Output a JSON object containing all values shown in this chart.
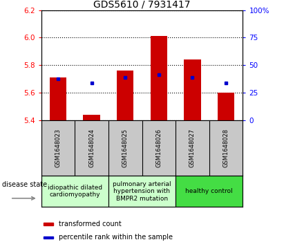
{
  "title": "GDS5610 / 7931417",
  "samples": [
    "GSM1648023",
    "GSM1648024",
    "GSM1648025",
    "GSM1648026",
    "GSM1648027",
    "GSM1648028"
  ],
  "bar_bottoms": [
    5.4,
    5.4,
    5.4,
    5.4,
    5.4,
    5.4
  ],
  "bar_tops": [
    5.71,
    5.44,
    5.76,
    6.01,
    5.84,
    5.6
  ],
  "dot_values": [
    5.7,
    5.67,
    5.71,
    5.73,
    5.71,
    5.67
  ],
  "ylim": [
    5.4,
    6.2
  ],
  "yticks_left": [
    5.4,
    5.6,
    5.8,
    6.0,
    6.2
  ],
  "yticks_right": [
    0,
    25,
    50,
    75,
    100
  ],
  "yticks_right_labels": [
    "0",
    "25",
    "50",
    "75",
    "100%"
  ],
  "bar_color": "#cc0000",
  "dot_color": "#0000cc",
  "disease_groups": [
    {
      "label": "idiopathic dilated\ncardiomyopathy",
      "start": 0,
      "end": 2,
      "color": "#ccffcc"
    },
    {
      "label": "pulmonary arterial\nhypertension with\nBMPR2 mutation",
      "start": 2,
      "end": 4,
      "color": "#ccffcc"
    },
    {
      "label": "healthy control",
      "start": 4,
      "end": 6,
      "color": "#44dd44"
    }
  ],
  "legend_bar_label": "transformed count",
  "legend_dot_label": "percentile rank within the sample",
  "disease_state_label": "disease state",
  "title_fontsize": 10,
  "tick_fontsize": 7.5,
  "sample_fontsize": 6,
  "group_fontsize": 6.5,
  "legend_fontsize": 7
}
